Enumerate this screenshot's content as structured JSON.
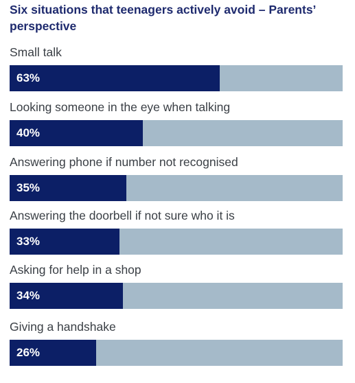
{
  "chart_data": {
    "type": "bar",
    "orientation": "horizontal",
    "title": "Six situations that teenagers actively avoid – Parents’ perspective",
    "categories": [
      "Small talk",
      "Looking someone in the eye when talking",
      "Answering phone if number not recognised",
      "Answering the doorbell if not sure who it is",
      "Asking for help in a shop",
      "Giving a handshake"
    ],
    "values": [
      63,
      40,
      35,
      33,
      34,
      26
    ],
    "value_labels": [
      "63%",
      "40%",
      "35%",
      "33%",
      "34%",
      "26%"
    ],
    "xlim": [
      0,
      100
    ],
    "grid": false,
    "legend": "none",
    "colors": {
      "bar": "#0c1f66",
      "track": "#a5bac9",
      "title": "#1e2a6e",
      "label": "#3a3f45",
      "value_text": "#ffffff"
    }
  }
}
